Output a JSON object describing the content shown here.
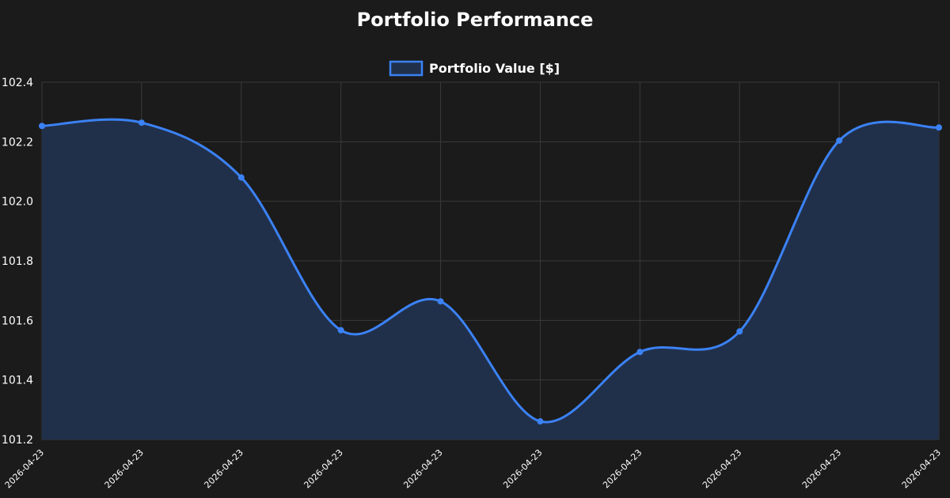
{
  "chart_data": {
    "type": "area",
    "title": "Portfolio Performance",
    "x": [
      "2026-04-23",
      "2026-04-23",
      "2026-04-23",
      "2026-04-23",
      "2026-04-23",
      "2026-04-23",
      "2026-04-23",
      "2026-04-23",
      "2026-04-23",
      "2026-04-23"
    ],
    "series": [
      {
        "name": "Portfolio Value [$]",
        "values": [
          102.253,
          102.264,
          102.08,
          101.567,
          101.664,
          101.261,
          101.494,
          101.563,
          102.204,
          102.248
        ]
      }
    ],
    "ylim": [
      101.2,
      102.4
    ],
    "yticks": [
      "101.2",
      "101.4",
      "101.6",
      "101.8",
      "102.0",
      "102.2",
      "102.4"
    ],
    "grid": true,
    "legend_position": "top-center",
    "colors": {
      "line": "#3b82f6",
      "fill": "#21304a",
      "background": "#1b1b1b",
      "grid": "#3a3a3a",
      "text": "#ffffff"
    }
  }
}
